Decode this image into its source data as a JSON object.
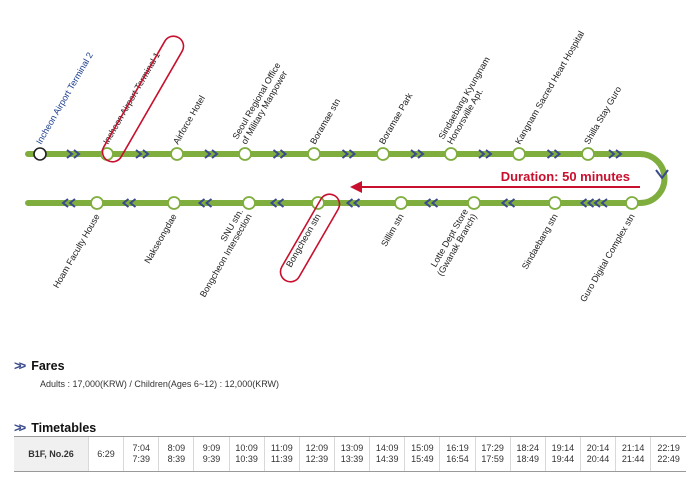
{
  "route": {
    "top_stations": [
      "Incheon Airport Terminal 2",
      "Incheon Airport Terminal 1",
      "Airforce Hotel",
      "Seoul Regional Office\nof Military Manpower",
      "Boramae stn",
      "Boramae Park",
      "Sindaebang Kyungnam\nHonorsville Apt.",
      "Kangnam Sacred Heart Hospital",
      "Shilla Stay Guro"
    ],
    "bottom_stations": [
      "Hoam Faculty House",
      "Nakseongdae",
      "SNU stn.\nBongcheon Intersection",
      "Bongcheon stn",
      "Sillim stn",
      "Lotte Dept Store\n(Gwanak Branch)",
      "Sindaebang stn",
      "Guro Digital Complex stn"
    ],
    "duration_label": "Duration: 50 minutes",
    "highlighted": [
      "Incheon Airport Terminal 1",
      "Bongcheon stn"
    ],
    "colors": {
      "line": "#7fae3e",
      "highlight": "#c8102e",
      "arrow": "#3a4a8c"
    }
  },
  "fares": {
    "title": "Fares",
    "text": "Adults : 17,000(KRW) / Children(Ages 6~12) : 12,000(KRW)"
  },
  "timetables": {
    "title": "Timetables",
    "stop_label": "B1F, No.26",
    "times": [
      [
        "6:29"
      ],
      [
        "7:04",
        "7:39"
      ],
      [
        "8:09",
        "8:39"
      ],
      [
        "9:09",
        "9:39"
      ],
      [
        "10:09",
        "10:39"
      ],
      [
        "11:09",
        "11:39"
      ],
      [
        "12:09",
        "12:39"
      ],
      [
        "13:09",
        "13:39"
      ],
      [
        "14:09",
        "14:39"
      ],
      [
        "15:09",
        "15:49"
      ],
      [
        "16:19",
        "16:54"
      ],
      [
        "17:29",
        "17:59"
      ],
      [
        "18:24",
        "18:49"
      ],
      [
        "19:14",
        "19:44"
      ],
      [
        "20:14",
        "20:44"
      ],
      [
        "21:14",
        "21:44"
      ],
      [
        "22:19",
        "22:49"
      ]
    ]
  }
}
